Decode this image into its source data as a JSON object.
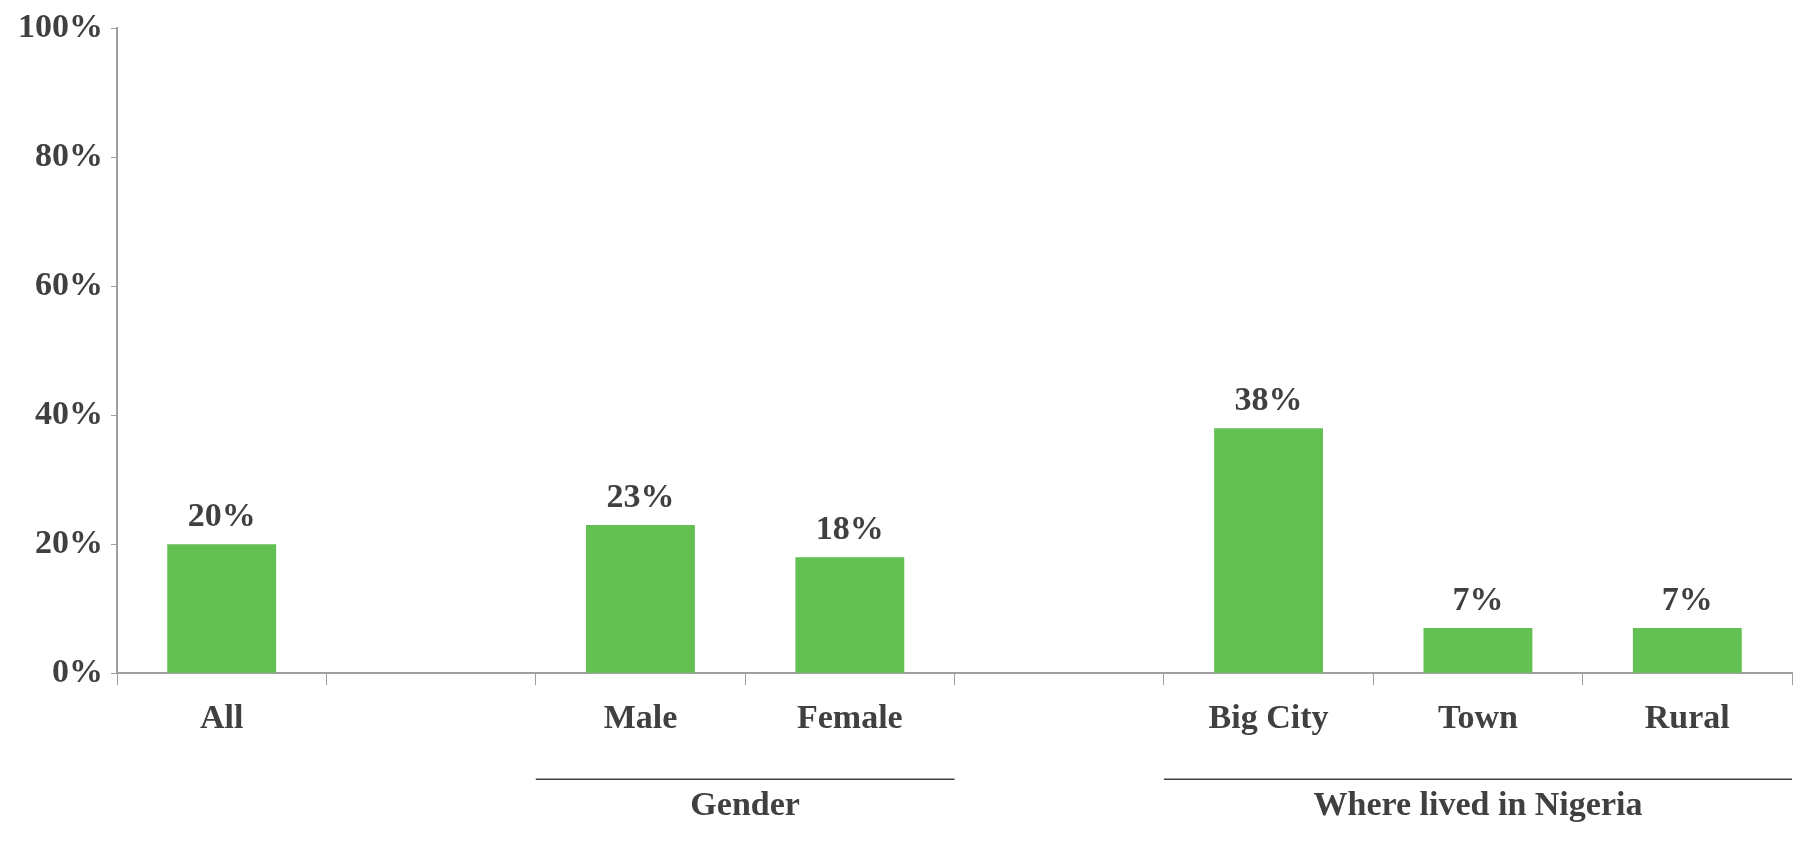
{
  "chart_data": {
    "type": "bar",
    "categories": [
      "All",
      null,
      "Male",
      "Female",
      null,
      "Big City",
      "Town",
      "Rural"
    ],
    "values": [
      20,
      null,
      23,
      18,
      null,
      38,
      7,
      7
    ],
    "value_labels": [
      "20%",
      null,
      "23%",
      "18%",
      null,
      "38%",
      "7%",
      "7%"
    ],
    "color": "#62c152",
    "ylim": [
      0,
      100
    ],
    "yticks": [
      {
        "value": 0,
        "label": "0%"
      },
      {
        "value": 20,
        "label": "20%"
      },
      {
        "value": 40,
        "label": "40%"
      },
      {
        "value": 60,
        "label": "60%"
      },
      {
        "value": 80,
        "label": "80%"
      },
      {
        "value": 100,
        "label": "100%"
      }
    ],
    "annotations": [
      "Gender",
      "Where lived in Nigeria"
    ],
    "grid": false,
    "legend": false
  }
}
